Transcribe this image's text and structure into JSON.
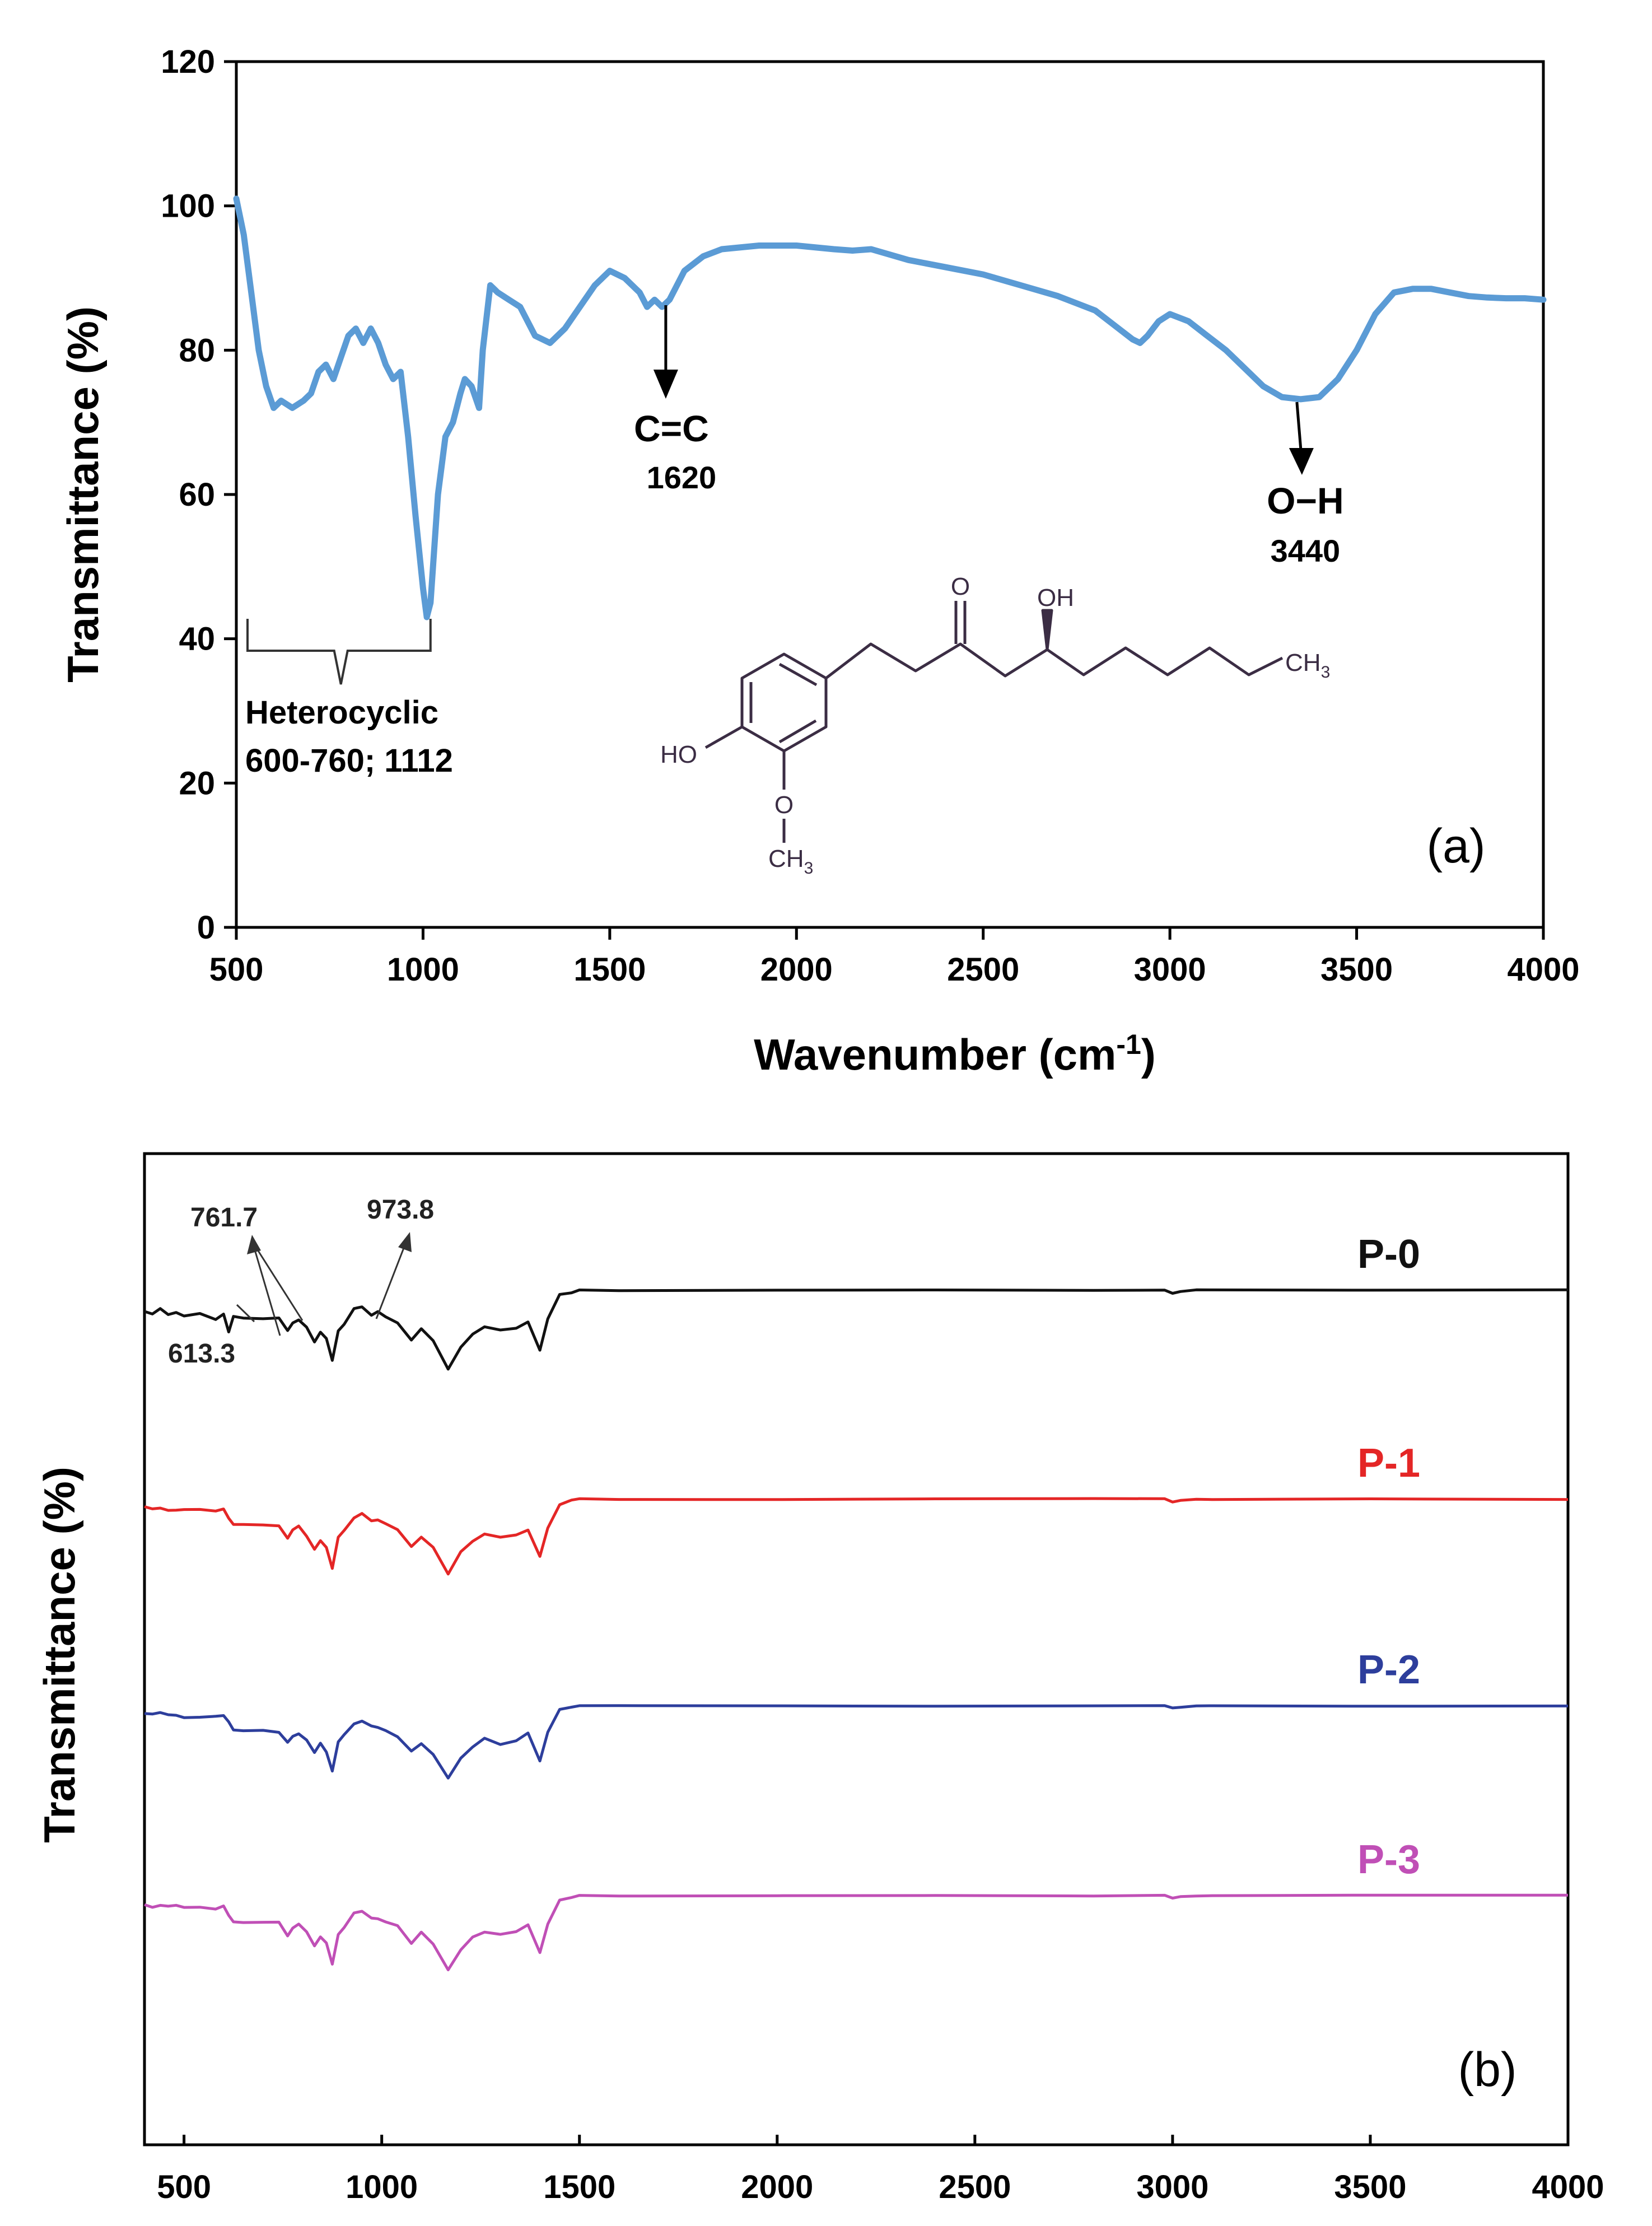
{
  "chart_data": [
    {
      "id": "a",
      "type": "line",
      "panel_label": "(a)",
      "xlabel_main": "Wavenumber (cm",
      "xlabel_sup": "-1",
      "xlabel_end": ")",
      "ylabel": "Transmittance (%)",
      "xlim": [
        500,
        4000
      ],
      "ylim": [
        0,
        120
      ],
      "x_ticks": [
        500,
        1000,
        1500,
        2000,
        2500,
        3000,
        3500,
        4000
      ],
      "y_ticks": [
        0,
        20,
        40,
        60,
        80,
        100,
        120
      ],
      "grid": false,
      "series": [
        {
          "name": "spectrum",
          "color": "#5b9bd5",
          "x": [
            500,
            520,
            540,
            560,
            580,
            600,
            620,
            650,
            680,
            700,
            720,
            740,
            760,
            780,
            800,
            820,
            840,
            860,
            880,
            900,
            920,
            940,
            960,
            980,
            1000,
            1010,
            1020,
            1040,
            1060,
            1080,
            1100,
            1112,
            1130,
            1150,
            1160,
            1180,
            1200,
            1230,
            1260,
            1300,
            1340,
            1380,
            1420,
            1460,
            1500,
            1540,
            1580,
            1600,
            1620,
            1640,
            1660,
            1700,
            1750,
            1800,
            1900,
            2000,
            2100,
            2150,
            2200,
            2300,
            2400,
            2500,
            2600,
            2700,
            2800,
            2850,
            2900,
            2920,
            2940,
            2970,
            3000,
            3050,
            3100,
            3150,
            3200,
            3250,
            3300,
            3350,
            3400,
            3450,
            3500,
            3550,
            3600,
            3650,
            3700,
            3750,
            3800,
            3850,
            3900,
            3950,
            4000
          ],
          "y": [
            101,
            96,
            88,
            80,
            75,
            72,
            73,
            72,
            73,
            74,
            77,
            78,
            76,
            79,
            82,
            83,
            81,
            83,
            81,
            78,
            76,
            77,
            68,
            57,
            47,
            43,
            45,
            60,
            68,
            70,
            74,
            76,
            75,
            72,
            80,
            89,
            88,
            87,
            86,
            82,
            81,
            83,
            86,
            89,
            91,
            90,
            88,
            86,
            87,
            86,
            87,
            91,
            93,
            94,
            94.5,
            94.5,
            94,
            93.8,
            94,
            92.5,
            91.5,
            90.5,
            89,
            87.5,
            85.5,
            83.5,
            81.5,
            81,
            82,
            84,
            85,
            84,
            82,
            80,
            77.5,
            75,
            73.5,
            73.2,
            73.5,
            76,
            80,
            85,
            88,
            88.5,
            88.5,
            88,
            87.5,
            87.3,
            87.2,
            87.2,
            87
          ]
        }
      ],
      "annotations": [
        {
          "label": "C=C",
          "value": "1620",
          "arrow_x": 1650
        },
        {
          "label": "O−H",
          "value": "3440",
          "arrow_x": 3340
        },
        {
          "label": "Heterocyclic",
          "value": "600-760; 1112",
          "range": [
            530,
            1020
          ]
        }
      ],
      "structure_labels": {
        "o": "O",
        "oh": "OH",
        "ch": "CH",
        "sub3": "3",
        "ho": "HO",
        "o2": "O",
        "ch_b": "CH",
        "sub3_b": "3"
      }
    },
    {
      "id": "b",
      "type": "line",
      "panel_label": "(b)",
      "ylabel": "Transmittance (%)",
      "xlim": [
        400,
        4000
      ],
      "x_ticks": [
        500,
        1000,
        1500,
        2000,
        2500,
        3000,
        3500,
        4000
      ],
      "y_ticks": [],
      "grid": false,
      "peak_labels": [
        "761.7",
        "973.8",
        "613.3"
      ],
      "series": [
        {
          "name": "P-0",
          "color": "#111111"
        },
        {
          "name": "P-1",
          "color": "#e42626"
        },
        {
          "name": "P-2",
          "color": "#2d3e9c"
        },
        {
          "name": "P-3",
          "color": "#c04fb6"
        }
      ],
      "shape": {
        "x": [
          400,
          420,
          440,
          460,
          480,
          500,
          540,
          580,
          600,
          613,
          625,
          650,
          700,
          740,
          762,
          775,
          790,
          810,
          830,
          845,
          860,
          875,
          890,
          905,
          930,
          950,
          974,
          990,
          1010,
          1040,
          1075,
          1100,
          1130,
          1168,
          1200,
          1230,
          1260,
          1300,
          1340,
          1370,
          1400,
          1420,
          1450,
          1480,
          1500,
          1600,
          2000,
          2400,
          2800,
          2980,
          3000,
          3020,
          3060,
          3100,
          3500,
          4000
        ],
        "y": [
          38,
          42,
          35,
          45,
          40,
          46,
          44,
          50,
          42,
          75,
          48,
          48,
          50,
          52,
          72,
          60,
          52,
          68,
          92,
          75,
          88,
          128,
          70,
          58,
          35,
          30,
          42,
          40,
          48,
          58,
          88,
          70,
          92,
          138,
          102,
          80,
          65,
          72,
          70,
          55,
          108,
          52,
          10,
          2,
          0,
          0,
          0,
          0,
          0,
          0,
          5,
          2,
          0,
          0,
          0,
          0
        ],
        "baseline_drop_scale": 1.0
      }
    }
  ]
}
